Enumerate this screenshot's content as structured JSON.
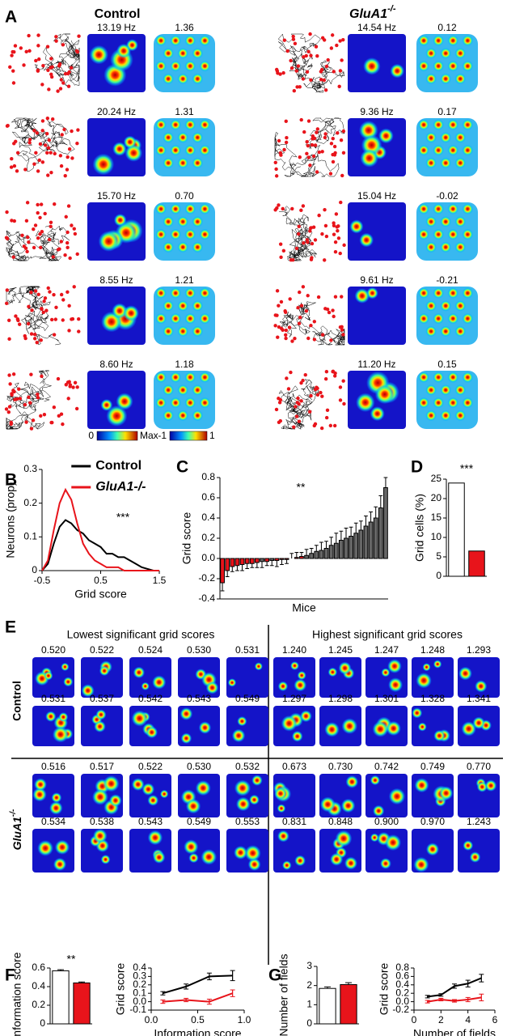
{
  "panel_a": {
    "label": "A",
    "control_title": "Control",
    "ko_title": "GluA1",
    "ko_sup": "-/-",
    "control_rows": [
      {
        "rate": "13.19 Hz",
        "score": "1.36"
      },
      {
        "rate": "20.24 Hz",
        "score": "1.31"
      },
      {
        "rate": "15.70 Hz",
        "score": "0.70"
      },
      {
        "rate": "8.55 Hz",
        "score": "1.21"
      },
      {
        "rate": "8.60 Hz",
        "score": "1.18"
      }
    ],
    "ko_rows": [
      {
        "rate": "14.54 Hz",
        "score": "0.12"
      },
      {
        "rate": "9.36 Hz",
        "score": "0.17"
      },
      {
        "rate": "15.04 Hz",
        "score": "-0.02"
      },
      {
        "rate": "9.61 Hz",
        "score": "-0.21"
      },
      {
        "rate": "11.20 Hz",
        "score": "0.15"
      }
    ],
    "rate_bar": {
      "min": "0",
      "max": "Max"
    },
    "corr_bar": {
      "min": "-1",
      "max": "1"
    }
  },
  "panel_e": {
    "label": "E",
    "lowest_title": "Lowest significant grid scores",
    "highest_title": "Highest significant grid scores",
    "row_label_control": "Control",
    "row_label_ko": "GluA1",
    "row_label_ko_sup": "-/-",
    "control_low": [
      "0.520",
      "0.522",
      "0.524",
      "0.530",
      "0.531",
      "0.531",
      "0.537",
      "0.542",
      "0.543",
      "0.549"
    ],
    "control_high": [
      "1.240",
      "1.245",
      "1.247",
      "1.248",
      "1.293",
      "1.297",
      "1.298",
      "1.301",
      "1.328",
      "1.341"
    ],
    "ko_low": [
      "0.516",
      "0.517",
      "0.522",
      "0.530",
      "0.532",
      "0.534",
      "0.538",
      "0.543",
      "0.549",
      "0.553"
    ],
    "ko_high": [
      "0.673",
      "0.730",
      "0.742",
      "0.749",
      "0.770",
      "0.831",
      "0.848",
      "0.900",
      "0.970",
      "1.243"
    ]
  },
  "chart_data": [
    {
      "type": "line",
      "panel": "B",
      "xlabel": "Grid score",
      "ylabel": "Neurons (prop)",
      "annotation": "***",
      "x": [
        -0.5,
        -0.4,
        -0.3,
        -0.2,
        -0.1,
        0,
        0.1,
        0.2,
        0.3,
        0.4,
        0.5,
        0.6,
        0.7,
        0.8,
        0.9,
        1.0,
        1.1,
        1.2,
        1.3,
        1.4,
        1.5
      ],
      "series": [
        {
          "name": "Control",
          "color": "#000000",
          "values": [
            0,
            0.02,
            0.08,
            0.13,
            0.15,
            0.14,
            0.12,
            0.11,
            0.09,
            0.08,
            0.07,
            0.05,
            0.05,
            0.04,
            0.04,
            0.03,
            0.02,
            0.01,
            0.005,
            0,
            0
          ]
        },
        {
          "name": "GluA1-/-",
          "color": "#e8141b",
          "values": [
            0,
            0.03,
            0.12,
            0.2,
            0.24,
            0.21,
            0.14,
            0.08,
            0.05,
            0.03,
            0.02,
            0.01,
            0.01,
            0.01,
            0,
            0,
            0,
            0,
            0,
            0,
            0
          ]
        }
      ],
      "xlim": [
        -0.5,
        1.5
      ],
      "xticks": [
        -0.5,
        0.5,
        1.5
      ],
      "ylim": [
        0,
        0.3
      ],
      "yticks": [
        0,
        0.1,
        0.2,
        0.3
      ],
      "legend": "upper right"
    },
    {
      "type": "bar",
      "panel": "C",
      "xlabel": "Mice",
      "ylabel": "Grid score",
      "annotation": "**",
      "values": [
        -0.24,
        -0.12,
        -0.08,
        -0.07,
        -0.06,
        -0.05,
        -0.05,
        -0.04,
        -0.03,
        -0.03,
        -0.02,
        -0.02,
        -0.01,
        -0.01,
        0,
        0.01,
        0.02,
        0.03,
        0.05,
        0.07,
        0.08,
        0.1,
        0.13,
        0.15,
        0.18,
        0.2,
        0.22,
        0.25,
        0.28,
        0.32,
        0.36,
        0.4,
        0.5,
        0.7
      ],
      "errors": [
        0.08,
        0.06,
        0.05,
        0.05,
        0.06,
        0.05,
        0.04,
        0.05,
        0.06,
        0.04,
        0.05,
        0.06,
        0.05,
        0.04,
        0.05,
        0.05,
        0.04,
        0.06,
        0.05,
        0.06,
        0.08,
        0.07,
        0.08,
        0.1,
        0.09,
        0.1,
        0.09,
        0.1,
        0.09,
        0.1,
        0.1,
        0.11,
        0.12,
        0.1
      ],
      "colors": [
        "#e8141b",
        "#e8141b",
        "#e8141b",
        "#e8141b",
        "#e8141b",
        "#e8141b",
        "#e8141b",
        "#e8141b",
        "#666666",
        "#e8141b",
        "#666666",
        "#e8141b",
        "#e8141b",
        "#e8141b",
        "#e8141b",
        "#e8141b",
        "#e8141b",
        "#666666",
        "#666666",
        "#666666",
        "#666666",
        "#666666",
        "#666666",
        "#666666",
        "#666666",
        "#666666",
        "#666666",
        "#666666",
        "#666666",
        "#666666",
        "#666666",
        "#666666",
        "#666666",
        "#666666"
      ],
      "ylim": [
        -0.4,
        0.8
      ],
      "yticks": [
        -0.4,
        -0.2,
        {
          "value": 0,
          "label": "0.0"
        },
        0.2,
        0.4,
        0.6,
        0.8
      ]
    },
    {
      "type": "bar",
      "panel": "D",
      "ylabel": "Grid cells (%)",
      "annotation": "***",
      "values": [
        24,
        6.5
      ],
      "colors": [
        "#ffffff",
        "#e8141b"
      ],
      "ylim": [
        0,
        25
      ],
      "yticks": [
        0,
        5,
        10,
        15,
        20,
        25
      ]
    },
    {
      "type": "bar",
      "panel": "F",
      "ylabel": "Information score",
      "annotation": "**",
      "values": [
        0.57,
        0.44
      ],
      "errors": [
        0.012,
        0.01
      ],
      "colors": [
        "#ffffff",
        "#e8141b"
      ],
      "ylim": [
        0,
        0.6
      ],
      "yticks": [
        0,
        0.2,
        0.4,
        0.6
      ]
    },
    {
      "type": "line",
      "xlabel": "Information score",
      "ylabel": "Grid score",
      "x": [
        0.125,
        0.375,
        0.625,
        0.875
      ],
      "series": [
        {
          "name": "Control",
          "color": "#000000",
          "values": [
            0.1,
            0.18,
            0.3,
            0.31
          ],
          "errors": [
            0.02,
            0.03,
            0.04,
            0.06
          ]
        },
        {
          "name": "GluA1-/-",
          "color": "#e8141b",
          "values": [
            0,
            0.02,
            0,
            0.1
          ],
          "errors": [
            0.02,
            0.02,
            0.03,
            0.04
          ]
        }
      ],
      "xlim": [
        0,
        1
      ],
      "xticks": [
        {
          "value": 0,
          "label": "0.0"
        },
        0.5,
        {
          "value": 1,
          "label": "1.0"
        }
      ],
      "ylim": [
        -0.1,
        0.4
      ],
      "yticks": [
        -0.1,
        {
          "value": 0,
          "label": "0.0"
        },
        0.1,
        0.2,
        0.3,
        0.4
      ]
    },
    {
      "type": "bar",
      "panel": "G",
      "ylabel": "Number of fields",
      "values": [
        1.85,
        2.05
      ],
      "errors": [
        0.08,
        0.1
      ],
      "colors": [
        "#ffffff",
        "#e8141b"
      ],
      "ylim": [
        0,
        3
      ],
      "yticks": [
        0,
        1,
        2,
        3
      ]
    },
    {
      "type": "line",
      "xlabel": "Number of fields",
      "ylabel": "Grid score",
      "x": [
        1,
        2,
        3,
        4,
        5
      ],
      "series": [
        {
          "name": "Control",
          "color": "#000000",
          "values": [
            0.12,
            0.16,
            0.37,
            0.43,
            0.56
          ],
          "errors": [
            0.03,
            0.03,
            0.05,
            0.08,
            0.09
          ]
        },
        {
          "name": "GluA1-/-",
          "color": "#e8141b",
          "values": [
            0,
            0.05,
            0.02,
            0.05,
            0.1
          ],
          "errors": [
            0.03,
            0.03,
            0.03,
            0.05,
            0.08
          ]
        }
      ],
      "xlim": [
        0,
        6
      ],
      "xticks": [
        0,
        2,
        4,
        6
      ],
      "ylim": [
        -0.2,
        0.8
      ],
      "yticks": [
        -0.2,
        {
          "value": 0,
          "label": "0.0"
        },
        0.2,
        0.4,
        0.6,
        0.8
      ]
    }
  ]
}
